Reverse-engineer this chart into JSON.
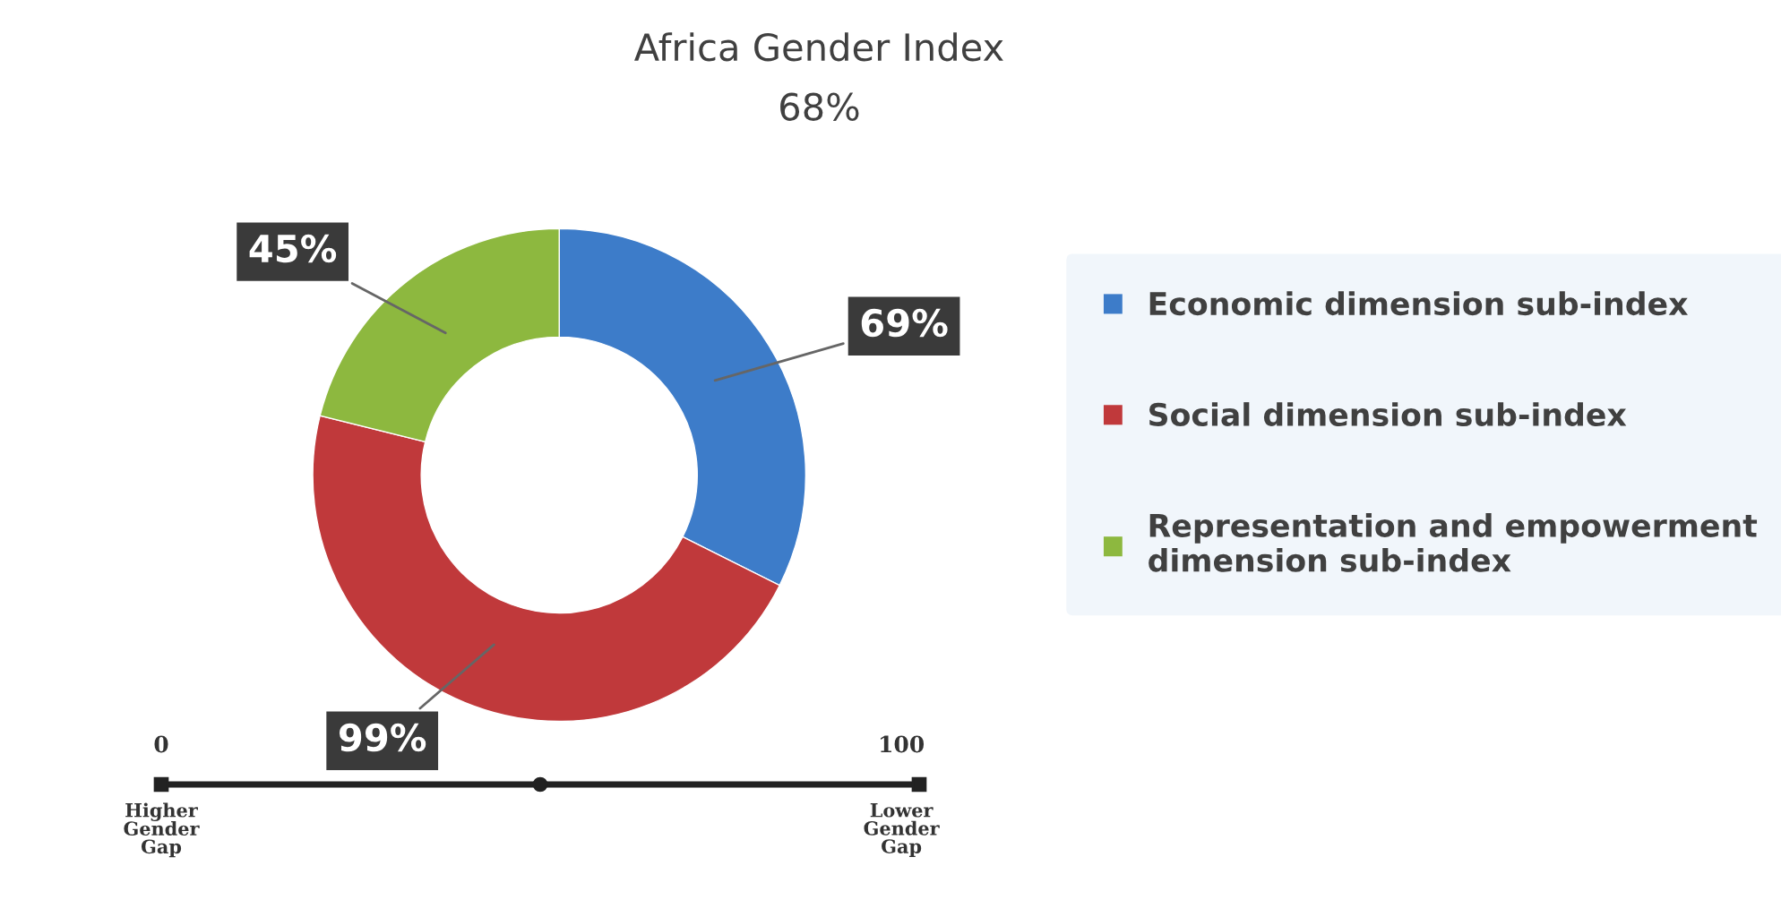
{
  "chart_data": {
    "type": "donut",
    "title": "Africa Gender Index",
    "subtitle": "68%",
    "categories": [
      "Economic dimension sub-index",
      "Social dimension sub-index",
      "Representation and empowerment\ndimension sub-index"
    ],
    "values": [
      69,
      99,
      45
    ],
    "value_labels": [
      "69%",
      "99%",
      "45%"
    ],
    "colors": [
      "#3d7cc9",
      "#c0393b",
      "#8db83f"
    ],
    "legend": "right",
    "annotations": [
      "0",
      "100",
      "Higher Gender Gap",
      "Lower Gender Gap"
    ]
  }
}
